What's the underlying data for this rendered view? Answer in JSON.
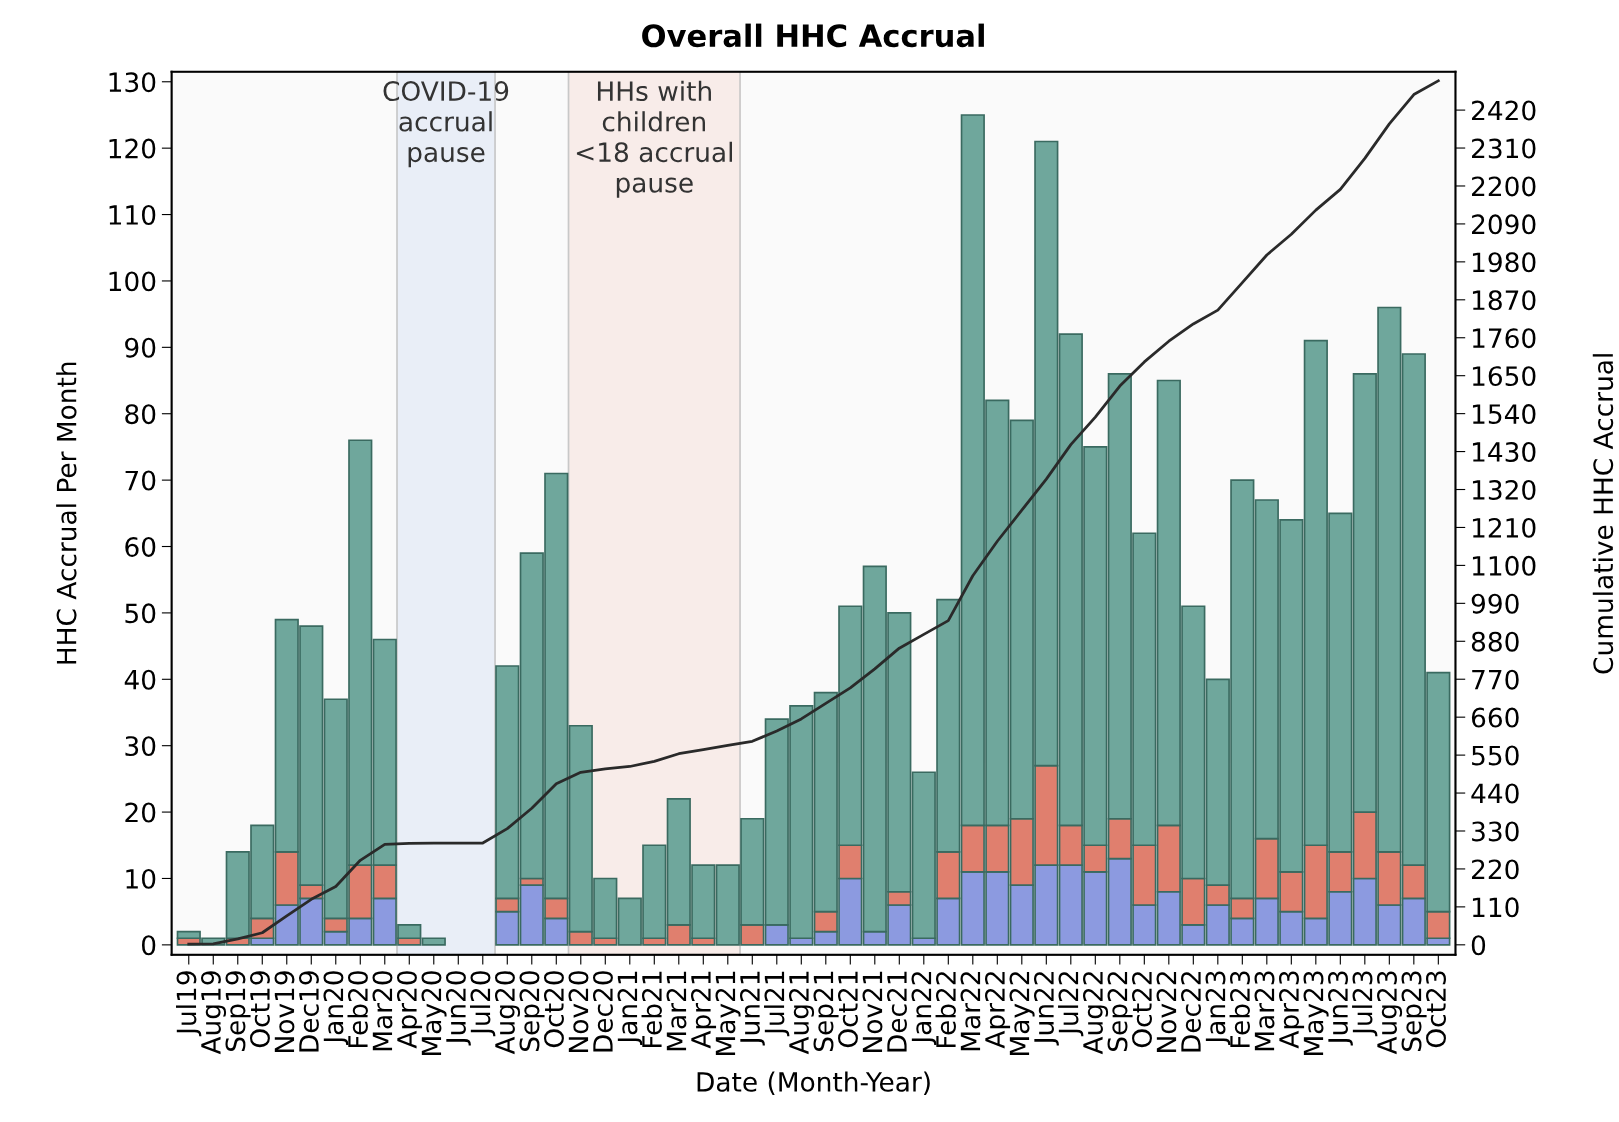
{
  "chart_data": {
    "type": "bar",
    "title": "Overall HHC Accrual",
    "xlabel": "Date (Month-Year)",
    "ylabel": "HHC Accrual Per Month",
    "y2label": "Cumulative HHC Accrual",
    "categories": [
      "Jul19",
      "Aug19",
      "Sep19",
      "Oct19",
      "Nov19",
      "Dec19",
      "Jan20",
      "Feb20",
      "Mar20",
      "Apr20",
      "May20",
      "Jun20",
      "Jul20",
      "Aug20",
      "Sep20",
      "Oct20",
      "Nov20",
      "Dec20",
      "Jan21",
      "Feb21",
      "Mar21",
      "Apr21",
      "May21",
      "Jun21",
      "Jul21",
      "Aug21",
      "Sep21",
      "Oct21",
      "Nov21",
      "Dec21",
      "Jan22",
      "Feb22",
      "Mar22",
      "Apr22",
      "May22",
      "Jun22",
      "Jul22",
      "Aug22",
      "Sep22",
      "Oct22",
      "Nov22",
      "Dec22",
      "Jan23",
      "Feb23",
      "Mar23",
      "Apr23",
      "May23",
      "Jun23",
      "Jul23",
      "Aug23",
      "Sep23",
      "Oct23"
    ],
    "stacked": true,
    "series": [
      {
        "color": "#8c9ae0",
        "values": [
          0,
          0,
          0,
          1,
          6,
          7,
          2,
          4,
          7,
          0,
          0,
          0,
          0,
          5,
          9,
          4,
          0,
          0,
          0,
          0,
          0,
          0,
          0,
          0,
          3,
          1,
          2,
          10,
          2,
          6,
          1,
          7,
          11,
          11,
          9,
          12,
          12,
          11,
          13,
          6,
          8,
          3,
          6,
          4,
          7,
          5,
          4,
          8,
          10,
          6,
          7,
          1
        ]
      },
      {
        "color": "#e07f6e",
        "values": [
          1,
          0,
          1,
          3,
          8,
          2,
          2,
          8,
          5,
          1,
          0,
          0,
          0,
          2,
          1,
          3,
          2,
          1,
          0,
          1,
          3,
          1,
          0,
          3,
          0,
          0,
          3,
          5,
          0,
          2,
          0,
          7,
          7,
          7,
          10,
          15,
          6,
          4,
          6,
          9,
          10,
          7,
          3,
          3,
          9,
          6,
          11,
          6,
          10,
          8,
          5,
          4
        ]
      },
      {
        "color": "#6fa79c",
        "values": [
          1,
          1,
          13,
          14,
          35,
          39,
          33,
          64,
          34,
          2,
          1,
          0,
          0,
          35,
          49,
          64,
          31,
          9,
          7,
          14,
          19,
          11,
          12,
          16,
          31,
          35,
          33,
          36,
          55,
          42,
          25,
          38,
          107,
          64,
          60,
          94,
          74,
          60,
          67,
          47,
          67,
          41,
          31,
          63,
          51,
          53,
          76,
          51,
          66,
          82,
          77,
          36
        ]
      },
      {
        "type": "line",
        "axis": "y2",
        "color": "#2a2a2a",
        "values": [
          2,
          3,
          17,
          35,
          84,
          132,
          169,
          245,
          291,
          294,
          295,
          295,
          295,
          337,
          396,
          467,
          500,
          510,
          517,
          532,
          554,
          566,
          578,
          590,
          620,
          655,
          700,
          745,
          800,
          860,
          900,
          940,
          1070,
          1170,
          1260,
          1350,
          1450,
          1530,
          1620,
          1690,
          1750,
          1800,
          1840,
          1920,
          2000,
          2060,
          2130,
          2190,
          2280,
          2380,
          2465,
          2505
        ]
      }
    ],
    "ylim": [
      -1.5,
      131.5
    ],
    "yticks": [
      0,
      10,
      20,
      30,
      40,
      50,
      60,
      70,
      80,
      90,
      100,
      110,
      120,
      130
    ],
    "y2lim": [
      -29,
      2531
    ],
    "y2ticks": [
      0,
      110,
      220,
      330,
      440,
      550,
      660,
      770,
      880,
      990,
      1100,
      1210,
      1320,
      1430,
      1540,
      1650,
      1760,
      1870,
      1980,
      2090,
      2200,
      2310,
      2420
    ],
    "bands": [
      {
        "axis": "x",
        "from": "Apr20",
        "to": "Jul20",
        "label": "COVID-19\naccrual\npause",
        "color": "#e9eef7"
      },
      {
        "axis": "x",
        "from": "Nov20",
        "to": "May21",
        "label": "HHs with\nchildren\n<18 accrual\npause",
        "color": "#f8ece9"
      }
    ],
    "grid": false
  }
}
